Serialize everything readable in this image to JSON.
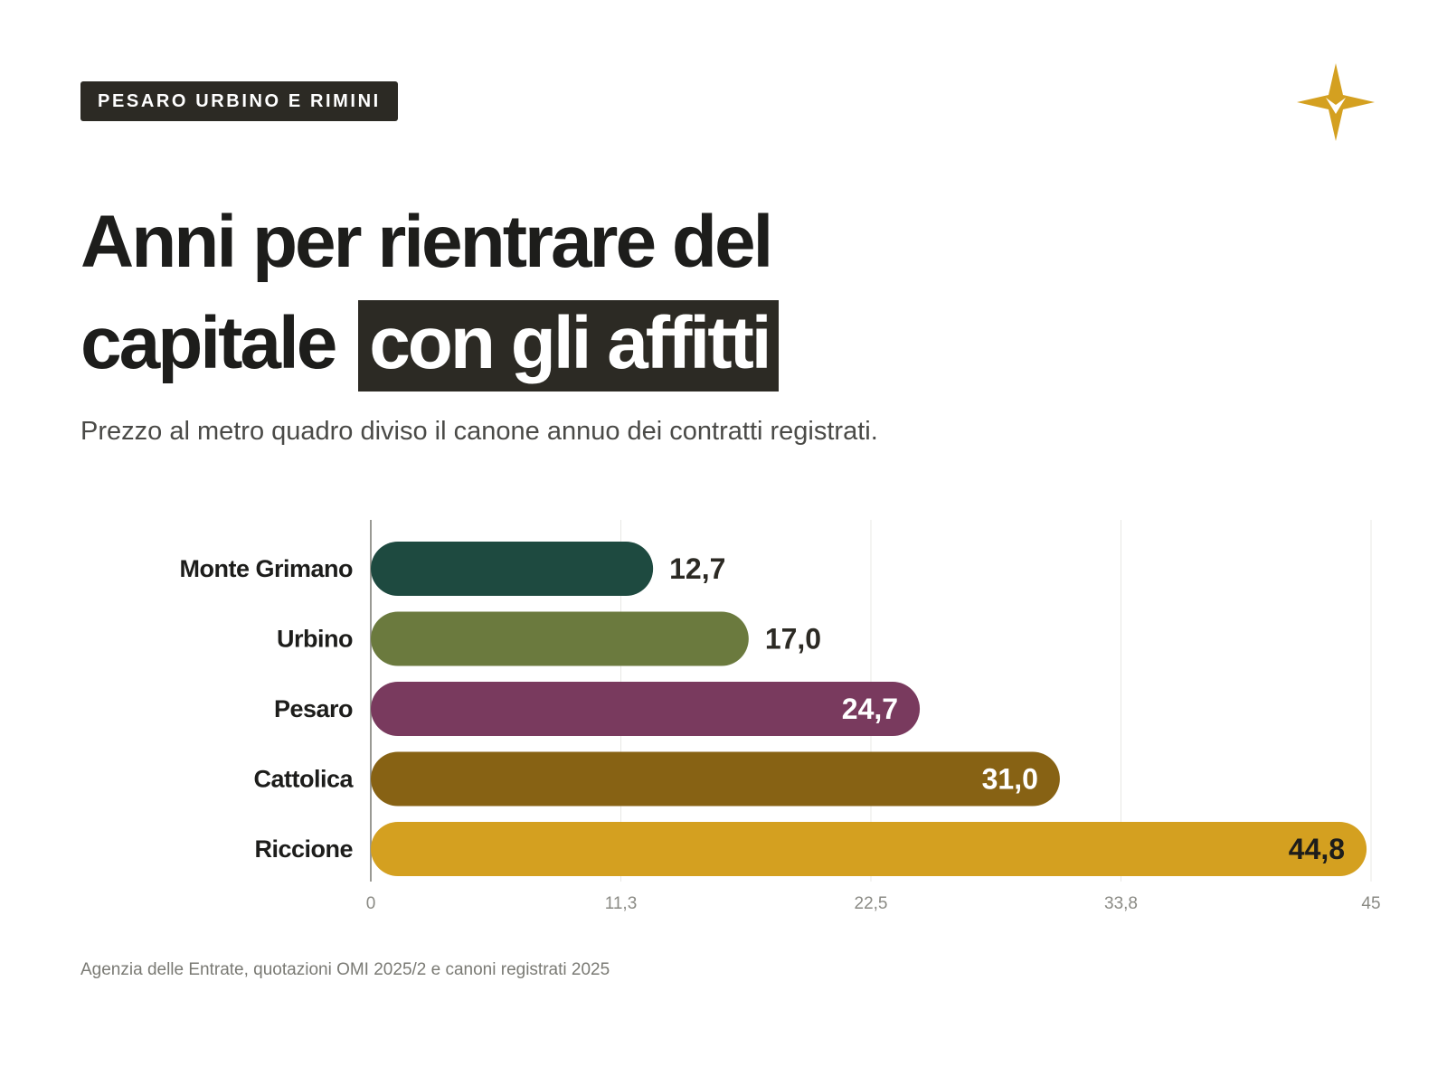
{
  "header": {
    "tag": "PESARO URBINO E RIMINI",
    "logo_icon": "gold-compass-star-icon"
  },
  "title": {
    "line1": "Anni per rientrare del",
    "line2_plain": "capitale",
    "line2_highlight": "con gli affitti"
  },
  "subtitle": "Prezzo al metro quadro diviso il canone annuo dei contratti registrati.",
  "source": "Agenzia delle Entrate, quotazioni OMI 2025/2 e canoni registrati 2025",
  "colors": {
    "dark": "#2c2a24",
    "gold": "#d4a020",
    "grid": "#e8e8e4",
    "axis": "#9a9a94"
  },
  "chart_data": {
    "type": "bar",
    "orientation": "horizontal",
    "categories": [
      "Monte Grimano",
      "Urbino",
      "Pesaro",
      "Cattolica",
      "Riccione"
    ],
    "values": [
      12.7,
      17.0,
      24.7,
      31.0,
      44.8
    ],
    "value_labels": [
      "12,7",
      "17,0",
      "24,7",
      "31,0",
      "44,8"
    ],
    "bar_colors": [
      "#1e4a40",
      "#6b7a3e",
      "#793a5e",
      "#876214",
      "#d4a020"
    ],
    "label_colors": [
      "#2c2a24",
      "#2c2a24",
      "#ffffff",
      "#ffffff",
      "#1d1d1b"
    ],
    "label_inside": [
      false,
      false,
      true,
      true,
      true
    ],
    "xlim": [
      0,
      45
    ],
    "xticks": [
      0,
      11.25,
      22.5,
      33.75,
      45
    ],
    "xtick_labels": [
      "0",
      "11,3",
      "22,5",
      "33,8",
      "45"
    ],
    "grid": true,
    "title": "",
    "xlabel": "",
    "ylabel": ""
  }
}
